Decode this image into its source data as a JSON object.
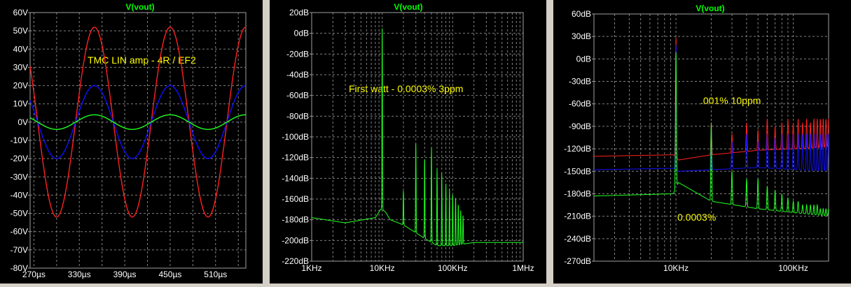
{
  "colors": {
    "background": "#000000",
    "grid": "#808080",
    "axis_text": "#ffffff",
    "trace_title": "#00ff00",
    "annotation": "#ffff00",
    "red": "#ff2020",
    "blue": "#1010ff",
    "green": "#20ff20"
  },
  "chart_data": [
    {
      "type": "line",
      "title": "V(vout)",
      "annotation": "TMC LIN amp - 4R / EF2",
      "x_tick_labels": [
        "270µs",
        "330µs",
        "390µs",
        "450µs",
        "510µs"
      ],
      "y_tick_labels": [
        "60V",
        "50V",
        "40V",
        "30V",
        "20V",
        "10V",
        "0V",
        "-10V",
        "-20V",
        "-30V",
        "-40V",
        "-50V",
        "-60V",
        "-70V",
        "-80V"
      ],
      "xlim_us": [
        265,
        550
      ],
      "ylim_V": [
        -80,
        60
      ],
      "grid": true,
      "series": [
        {
          "color": "red",
          "amplitude_V": 52,
          "frequency_kHz": 10,
          "phase_deg": -90
        },
        {
          "color": "blue",
          "amplitude_V": 20,
          "frequency_kHz": 10,
          "phase_deg": -90
        },
        {
          "color": "green",
          "amplitude_V": 4,
          "frequency_kHz": 10,
          "phase_deg": -90
        }
      ]
    },
    {
      "type": "line",
      "title": "V(vout)",
      "annotation": "First watt - 0.0003% 3ppm",
      "x_scale": "log",
      "xlim_Hz": [
        1000,
        1000000
      ],
      "x_tick_labels": [
        "1KHz",
        "10KHz",
        "100KHz",
        "1MHz"
      ],
      "ylim_dB": [
        -220,
        20
      ],
      "y_tick_labels": [
        "20dB",
        "0dB",
        "-20dB",
        "-40dB",
        "-60dB",
        "-80dB",
        "-100dB",
        "-120dB",
        "-140dB",
        "-160dB",
        "-180dB",
        "-200dB",
        "-220dB"
      ],
      "grid": true,
      "series": [
        {
          "color": "green",
          "noise_floor_dB": [
            [
              1000,
              -178
            ],
            [
              3000,
              -183
            ],
            [
              8000,
              -178
            ],
            [
              9500,
              -170
            ],
            [
              11000,
              -172
            ],
            [
              13000,
              -180
            ],
            [
              20000,
              -185
            ],
            [
              40000,
              -198
            ],
            [
              60000,
              -205
            ],
            [
              100000,
              -205
            ],
            [
              200000,
              -202
            ],
            [
              1000000,
              -202
            ]
          ],
          "peaks": [
            [
              10000,
              8
            ],
            [
              20000,
              -152
            ],
            [
              30000,
              -105
            ],
            [
              40000,
              -120
            ],
            [
              50000,
              -110
            ],
            [
              60000,
              -130
            ],
            [
              70000,
              -135
            ],
            [
              80000,
              -145
            ],
            [
              90000,
              -150
            ],
            [
              100000,
              -155
            ],
            [
              110000,
              -158
            ],
            [
              120000,
              -165
            ],
            [
              130000,
              -170
            ],
            [
              140000,
              -175
            ]
          ]
        }
      ]
    },
    {
      "type": "line",
      "title": "V(vout)",
      "annotations": [
        ".001% 10ppm",
        "0.0003%"
      ],
      "x_scale": "log",
      "xlim_Hz": [
        2000,
        200000
      ],
      "x_tick_labels": [
        "10KHz",
        "100KHz"
      ],
      "ylim_dB": [
        -270,
        60
      ],
      "y_tick_labels": [
        "60dB",
        "30dB",
        "0dB",
        "-30dB",
        "-60dB",
        "-90dB",
        "-120dB",
        "-150dB",
        "-180dB",
        "-210dB",
        "-240dB",
        "-270dB"
      ],
      "grid": true,
      "series": [
        {
          "color": "red",
          "noise_floor_dB": [
            [
              2000,
              -130
            ],
            [
              9500,
              -128
            ],
            [
              10500,
              -135
            ],
            [
              20000,
              -128
            ],
            [
              50000,
              -122
            ],
            [
              200000,
              -118
            ]
          ],
          "fundamental_dB": 30,
          "harmonic_peaks_dB": [
            -85,
            -100,
            -85,
            -95,
            -80,
            -90,
            -85,
            -80,
            -85,
            -80,
            -85,
            -80,
            -85,
            -80,
            -80,
            -80,
            -80,
            -80,
            -80,
            -80
          ]
        },
        {
          "color": "blue",
          "noise_floor_dB": [
            [
              2000,
              -148
            ],
            [
              9500,
              -146
            ],
            [
              10500,
              -150
            ],
            [
              20000,
              -148
            ],
            [
              50000,
              -145
            ],
            [
              200000,
              -150
            ]
          ],
          "fundamental_dB": 20,
          "harmonic_peaks_dB": [
            -90,
            -110,
            -100,
            -110,
            -100,
            -105,
            -100,
            -100,
            -100,
            -100,
            -100,
            -100,
            -100,
            -100,
            -100,
            -100,
            -100,
            -100,
            -100,
            -100
          ]
        },
        {
          "color": "green",
          "noise_floor_dB": [
            [
              2000,
              -183
            ],
            [
              9500,
              -180
            ],
            [
              10500,
              -165
            ],
            [
              20000,
              -190
            ],
            [
              50000,
              -200
            ],
            [
              200000,
              -210
            ]
          ],
          "fundamental_dB": 10,
          "harmonic_peaks_dB": [
            -85,
            -150,
            -160,
            -160,
            -170,
            -175,
            -180,
            -185,
            -190,
            -190,
            -195,
            -195,
            -195,
            -195,
            -195,
            -200,
            -200,
            -200,
            -200,
            -200
          ]
        }
      ]
    }
  ]
}
